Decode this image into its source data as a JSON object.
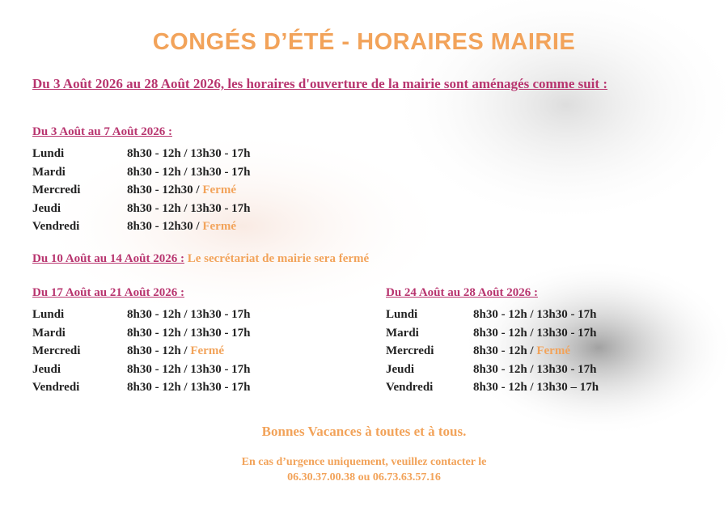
{
  "title": "CONGÉS D’ÉTÉ - HORAIRES MAIRIE",
  "intro": "Du 3 Août 2026 au 28 Août 2026, les horaires d'ouverture de la mairie sont aménagés comme suit :",
  "weeks": [
    {
      "heading": "Du 3 Août au 7 Août 2026 :",
      "rows": [
        {
          "day": "Lundi",
          "hours": "8h30 - 12h / 13h30 - 17h"
        },
        {
          "day": "Mardi",
          "hours": "8h30 - 12h / 13h30 - 17h"
        },
        {
          "day": "Mercredi",
          "hours": "8h30 - 12h30 /",
          "closed": "Fermé"
        },
        {
          "day": "Jeudi",
          "hours": "8h30 - 12h / 13h30 - 17h"
        },
        {
          "day": "Vendredi",
          "hours": "8h30 - 12h30 /",
          "closed": "Fermé"
        }
      ]
    },
    {
      "heading": "Du 17 Août au 21 Août 2026 :",
      "rows": [
        {
          "day": "Lundi",
          "hours": "8h30 - 12h / 13h30 - 17h"
        },
        {
          "day": "Mardi",
          "hours": "8h30 - 12h / 13h30 - 17h"
        },
        {
          "day": "Mercredi",
          "hours": "8h30 - 12h /",
          "closed": "Fermé"
        },
        {
          "day": "Jeudi",
          "hours": "8h30 - 12h / 13h30 - 17h"
        },
        {
          "day": "Vendredi",
          "hours": "8h30 - 12h / 13h30 - 17h"
        }
      ]
    },
    {
      "heading": "Du 24 Août au 28 Août 2026 :",
      "rows": [
        {
          "day": "Lundi",
          "hours": "8h30 - 12h / 13h30 - 17h"
        },
        {
          "day": "Mardi",
          "hours": "8h30 - 12h / 13h30 - 17h"
        },
        {
          "day": "Mercredi",
          "hours": "8h30 - 12h /",
          "closed": "Fermé"
        },
        {
          "day": "Jeudi",
          "hours": "8h30 - 12h / 13h30 - 17h"
        },
        {
          "day": "Vendredi",
          "hours": "8h30 - 12h / 13h30 – 17h"
        }
      ]
    }
  ],
  "closed_week": {
    "heading": "Du 10 Août au 14 Août 2026 :",
    "text": "Le secrétariat de mairie sera fermé"
  },
  "footer": {
    "greeting": "Bonnes Vacances à toutes et à tous.",
    "contact": "En cas d’urgence uniquement, veuillez contacter le",
    "phones": "06.30.37.00.38 ou 06.73.63.57.16"
  }
}
